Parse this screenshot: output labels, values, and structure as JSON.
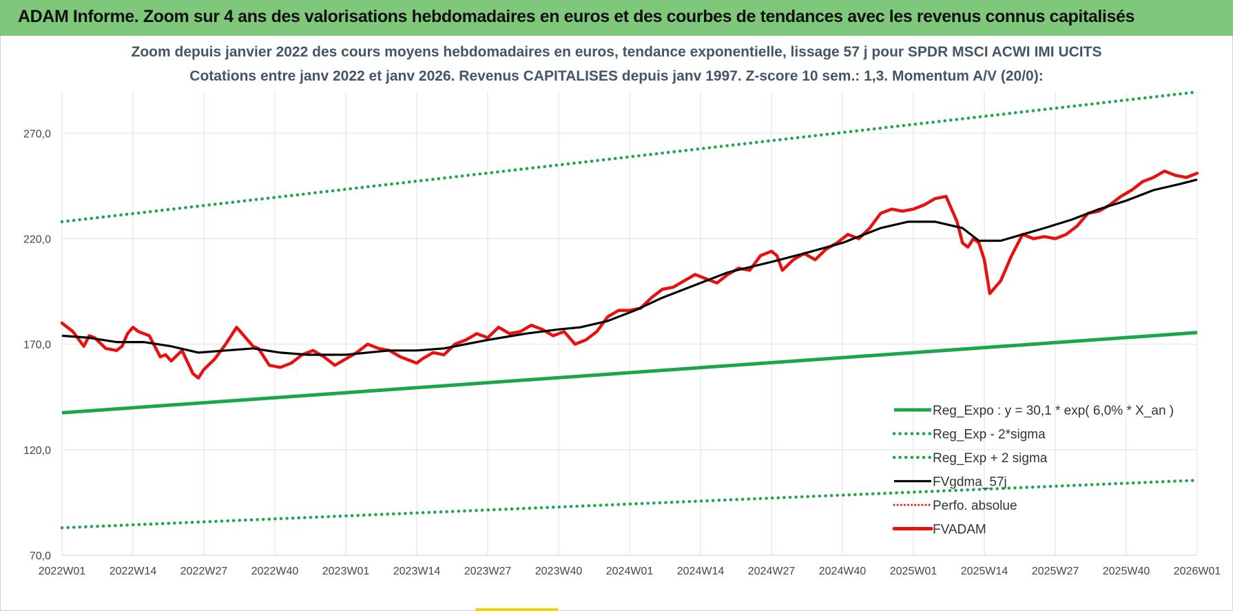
{
  "header": {
    "title": "ADAM Informe. Zoom sur 4 ans des valorisations hebdomadaires en euros et des courbes de tendances avec les revenus connus capitalisés"
  },
  "chart_data": {
    "type": "line",
    "title": "Zoom depuis janvier 2022 des cours moyens hebdomadaires en euros, tendance exponentielle, lissage 57 j pour SPDR MSCI ACWI IMI UCITS",
    "subtitle": "Cotations entre janv 2022 et janv 2026. Revenus CAPITALISES depuis janv 1997. Z-score 10 sem.: 1,3. Momentum A/V (20/0):",
    "xlabel": "",
    "ylabel": "",
    "ylim": [
      70,
      290
    ],
    "yticks": [
      "70,0",
      "120,0",
      "170,0",
      "220,0",
      "270,0"
    ],
    "x_ticks": [
      "2022W01",
      "2022W14",
      "2022W27",
      "2022W40",
      "2023W01",
      "2023W14",
      "2023W27",
      "2023W40",
      "2024W01",
      "2024W14",
      "2024W27",
      "2024W40",
      "2025W01",
      "2025W14",
      "2025W27",
      "2025W40",
      "2026W01"
    ],
    "grid": true,
    "legend_position": "bottom-right",
    "colors": {
      "trend": "#1aa64a",
      "sigma": "#1aa64a",
      "ma": "#000000",
      "perfo": "#e02020",
      "price": "#e81010"
    },
    "x_weeks": [
      0,
      13,
      26,
      39,
      52,
      65,
      78,
      91,
      104,
      117,
      130,
      143,
      156,
      169,
      182,
      195,
      208
    ],
    "series": [
      {
        "name": "Reg_Expo : y = 30,1 * exp( 6,0% *  X_an )",
        "key": "trend",
        "style": "solid",
        "x": [
          0,
          208
        ],
        "values": [
          137.5,
          175.5
        ]
      },
      {
        "name": "Reg_Exp - 2*sigma",
        "key": "lower",
        "style": "dotted",
        "x": [
          0,
          208
        ],
        "values": [
          83,
          105.5
        ]
      },
      {
        "name": "Reg_Exp + 2 sigma",
        "key": "upper",
        "style": "dotted",
        "x": [
          0,
          208
        ],
        "values": [
          228,
          289.5
        ]
      },
      {
        "name": "FVgdma_57j",
        "key": "ma",
        "style": "solid",
        "x": [
          0,
          5,
          10,
          15,
          20,
          25,
          30,
          35,
          40,
          45,
          52,
          60,
          65,
          70,
          78,
          85,
          91,
          95,
          100,
          105,
          110,
          117,
          122,
          130,
          136,
          143,
          150,
          155,
          160,
          165,
          168,
          172,
          176,
          180,
          185,
          190,
          195,
          200,
          205,
          208
        ],
        "values": [
          174,
          173,
          171,
          171,
          169,
          166,
          167,
          168,
          166,
          165,
          165,
          167,
          167,
          168,
          172,
          175,
          177,
          178,
          181,
          186,
          192,
          199,
          204,
          209,
          213,
          218,
          225,
          228,
          228,
          225,
          219,
          219,
          222,
          225,
          229,
          234,
          238,
          243,
          246,
          248
        ]
      },
      {
        "name": "Perfo. absolue",
        "key": "perfo",
        "style": "dotted",
        "x": [],
        "values": []
      },
      {
        "name": "FVADAM",
        "key": "price",
        "style": "solid",
        "x": [
          0,
          2,
          4,
          5,
          6,
          8,
          10,
          11,
          12,
          13,
          14,
          16,
          18,
          19,
          20,
          22,
          24,
          25,
          26,
          28,
          30,
          32,
          34,
          35,
          36,
          38,
          40,
          42,
          44,
          46,
          48,
          50,
          52,
          54,
          56,
          58,
          60,
          62,
          64,
          65,
          66,
          68,
          70,
          72,
          74,
          76,
          78,
          80,
          82,
          84,
          86,
          88,
          90,
          92,
          94,
          96,
          98,
          100,
          102,
          104,
          106,
          108,
          110,
          112,
          114,
          116,
          118,
          120,
          122,
          124,
          126,
          128,
          130,
          131,
          132,
          134,
          136,
          138,
          140,
          142,
          144,
          146,
          148,
          150,
          152,
          154,
          156,
          158,
          160,
          162,
          164,
          165,
          166,
          167,
          168,
          169,
          170,
          172,
          174,
          176,
          178,
          180,
          182,
          184,
          186,
          188,
          190,
          192,
          194,
          196,
          198,
          200,
          202,
          204,
          206,
          208
        ],
        "values": [
          180,
          176,
          169,
          174,
          173,
          168,
          167,
          169,
          175,
          178,
          176,
          174,
          164,
          165,
          162,
          167,
          156,
          154,
          158,
          163,
          170,
          178,
          172,
          169,
          168,
          160,
          159,
          161,
          165,
          167,
          164,
          160,
          163,
          166,
          170,
          168,
          167,
          164,
          162,
          161,
          163,
          166,
          165,
          170,
          172,
          175,
          173,
          178,
          175,
          176,
          179,
          177,
          174,
          176,
          170,
          172,
          176,
          183,
          186,
          186,
          187,
          192,
          196,
          197,
          200,
          203,
          201,
          199,
          203,
          206,
          205,
          212,
          214,
          212,
          205,
          210,
          213,
          210,
          215,
          218,
          222,
          220,
          225,
          232,
          234,
          233,
          234,
          236,
          239,
          240,
          228,
          218,
          216,
          220,
          218,
          210,
          194,
          200,
          212,
          222,
          220,
          221,
          220,
          222,
          226,
          232,
          233,
          236,
          240,
          243,
          247,
          249,
          252,
          250,
          249,
          251
        ]
      }
    ]
  }
}
